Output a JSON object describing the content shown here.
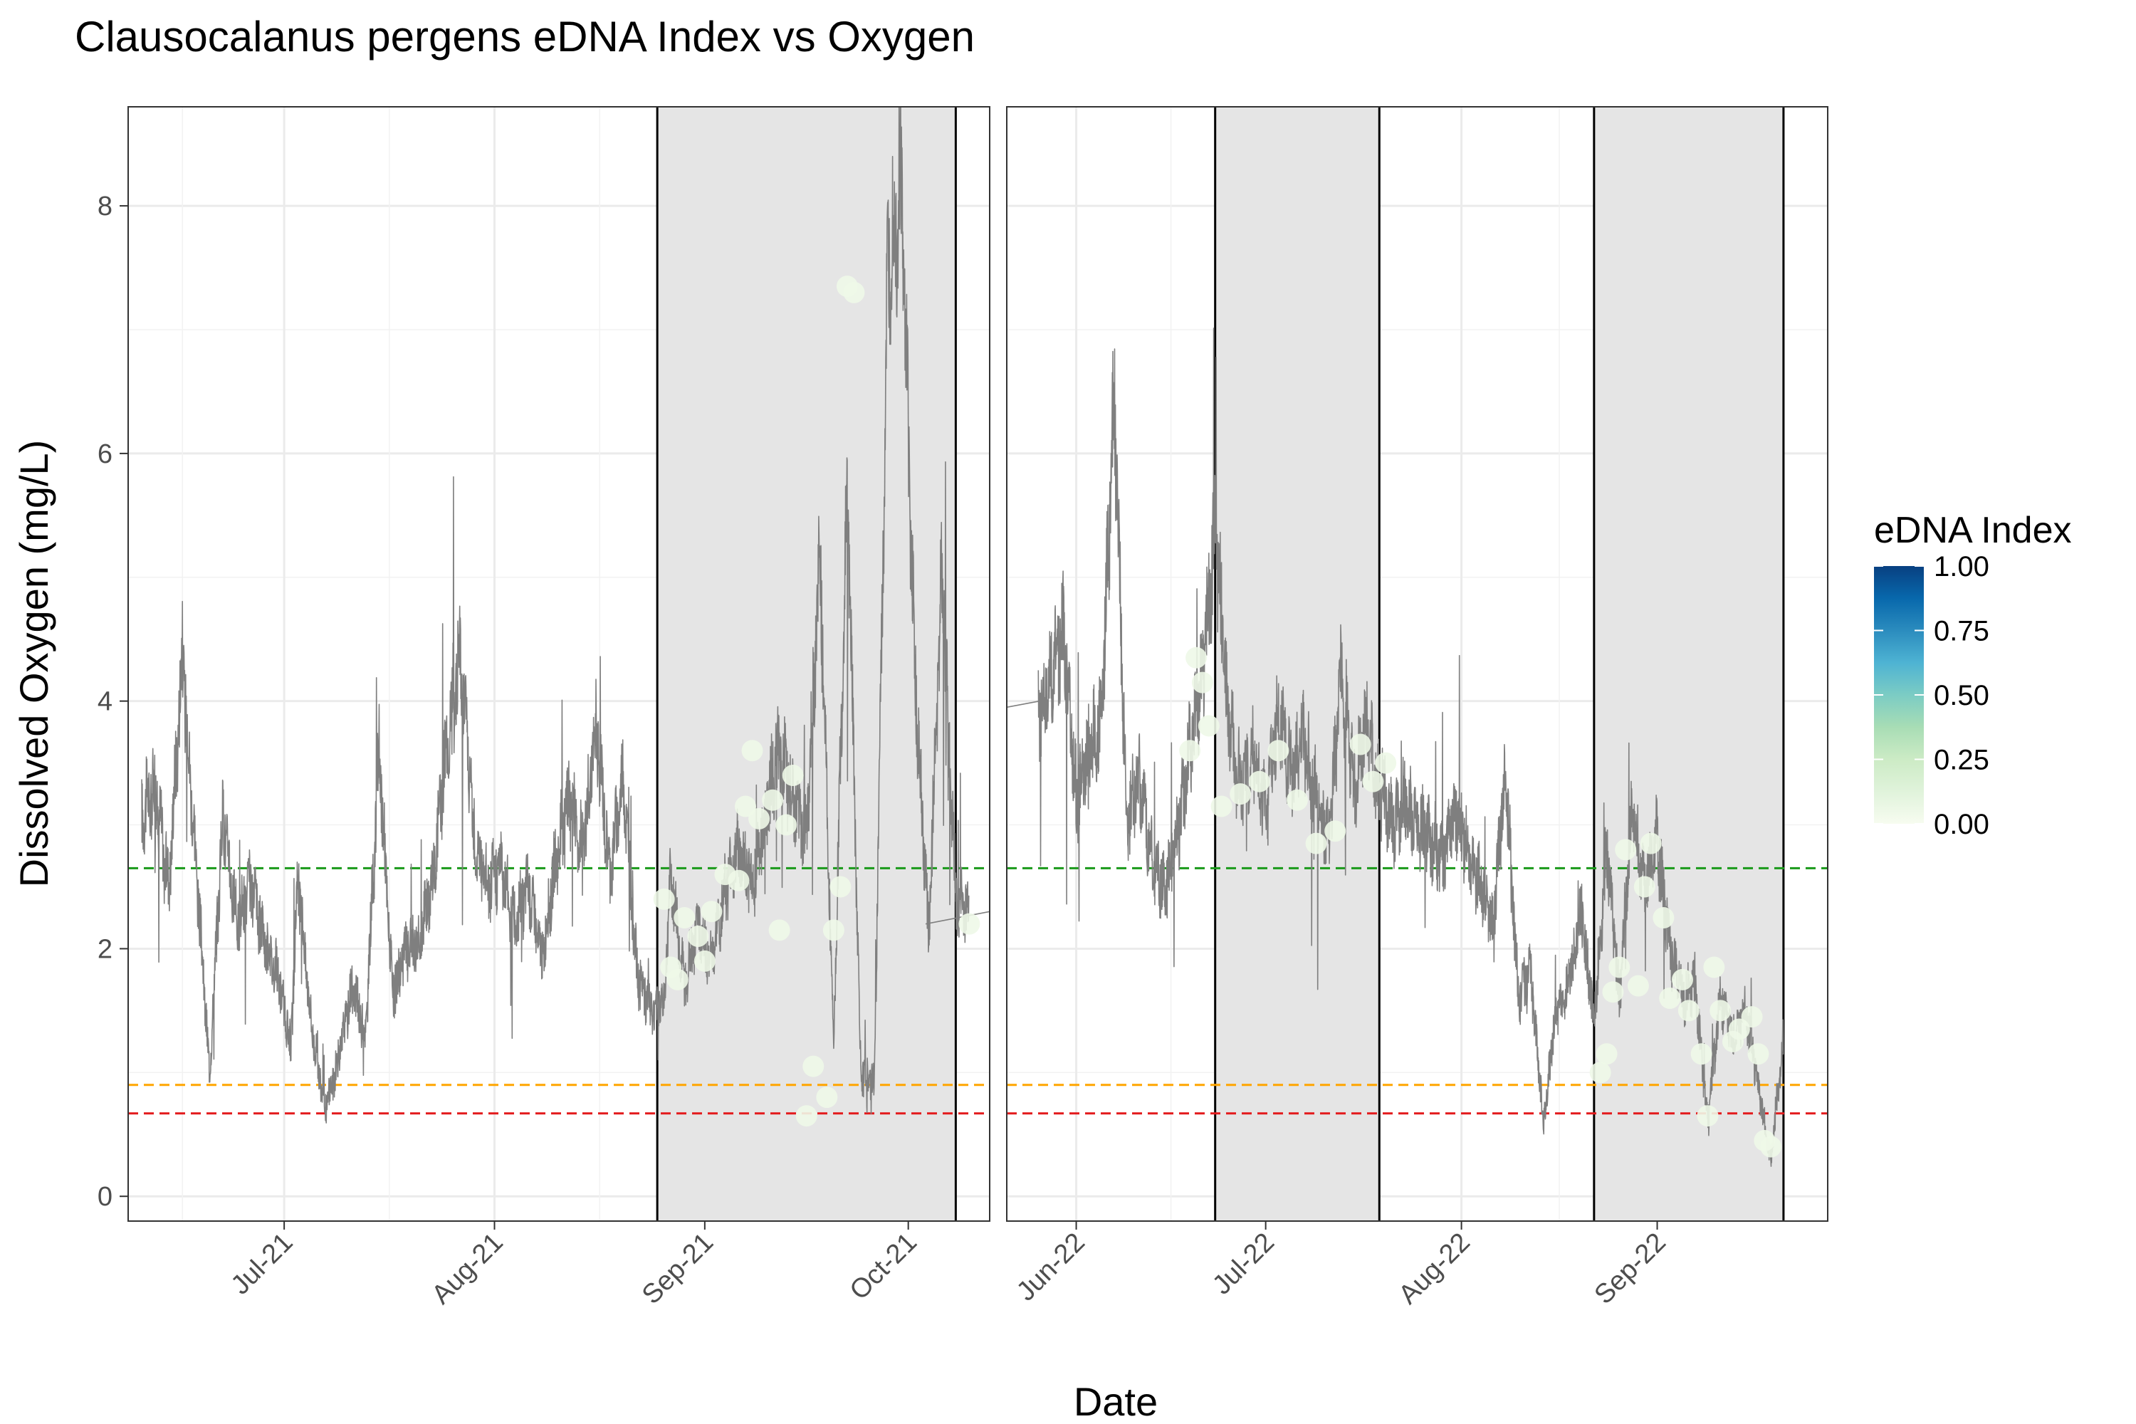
{
  "title": "Clausocalanus pergens eDNA Index vs Oxygen",
  "chart_data": {
    "type": "scatter",
    "title": "Clausocalanus pergens eDNA Index vs Oxygen",
    "xlabel": "Date",
    "ylabel": "Dissolved Oxygen (mg/L)",
    "ylim": [
      -0.2,
      8.8
    ],
    "y_ticks": [
      0,
      2,
      4,
      6,
      8
    ],
    "y_tick_labels": [
      "0",
      "2",
      "4",
      "6",
      "8"
    ],
    "grid": true,
    "legend": {
      "title": "eDNA Index",
      "position": "right",
      "ticks": [
        1.0,
        0.75,
        0.5,
        0.25,
        0.0
      ],
      "labels": [
        "1.00",
        "0.75",
        "0.50",
        "0.25",
        "0.00"
      ],
      "colors": [
        "#084081",
        "#0868ac",
        "#2b8cbe",
        "#4eb3d3",
        "#7bccc4",
        "#a8ddb5",
        "#ccebc5",
        "#e0f3db",
        "#f7fcf0"
      ]
    },
    "reference_lines": [
      {
        "y": 2.65,
        "color": "#1a9a1a"
      },
      {
        "y": 0.9,
        "color": "#ffa500"
      },
      {
        "y": 0.67,
        "color": "#e31a1c"
      }
    ],
    "panels": [
      {
        "xlim": [
          "2021-06-08",
          "2021-10-13"
        ],
        "x_ticks": [
          "2021-07-01",
          "2021-08-01",
          "2021-09-01",
          "2021-10-01"
        ],
        "x_tick_labels": [
          "Jul-21",
          "Aug-21",
          "Sep-21",
          "Oct-21"
        ],
        "shaded_periods": [
          [
            "2021-08-25",
            "2021-10-08"
          ]
        ],
        "oxygen_series": {
          "x_start": "2021-06-10",
          "x_end": "2021-10-10",
          "points": [
            [
              "2021-06-10",
              3.1
            ],
            [
              "2021-06-12",
              3.3
            ],
            [
              "2021-06-14",
              2.5
            ],
            [
              "2021-06-16",
              4.4
            ],
            [
              "2021-06-18",
              2.7
            ],
            [
              "2021-06-20",
              1.0
            ],
            [
              "2021-06-22",
              3.1
            ],
            [
              "2021-06-24",
              2.2
            ],
            [
              "2021-06-26",
              2.5
            ],
            [
              "2021-06-28",
              2.1
            ],
            [
              "2021-06-30",
              1.8
            ],
            [
              "2021-07-02",
              1.2
            ],
            [
              "2021-07-03",
              2.6
            ],
            [
              "2021-07-05",
              1.4
            ],
            [
              "2021-07-07",
              0.7
            ],
            [
              "2021-07-09",
              1.1
            ],
            [
              "2021-07-11",
              1.7
            ],
            [
              "2021-07-13",
              1.3
            ],
            [
              "2021-07-15",
              3.6
            ],
            [
              "2021-07-17",
              1.6
            ],
            [
              "2021-07-19",
              2.0
            ],
            [
              "2021-07-21",
              2.1
            ],
            [
              "2021-07-23",
              2.6
            ],
            [
              "2021-07-25",
              3.7
            ],
            [
              "2021-07-27",
              4.4
            ],
            [
              "2021-07-29",
              2.9
            ],
            [
              "2021-07-31",
              2.5
            ],
            [
              "2021-08-02",
              2.7
            ],
            [
              "2021-08-04",
              2.2
            ],
            [
              "2021-08-06",
              2.5
            ],
            [
              "2021-08-08",
              1.9
            ],
            [
              "2021-08-10",
              2.7
            ],
            [
              "2021-08-12",
              3.2
            ],
            [
              "2021-08-14",
              2.8
            ],
            [
              "2021-08-16",
              3.8
            ],
            [
              "2021-08-18",
              2.6
            ],
            [
              "2021-08-20",
              3.4
            ],
            [
              "2021-08-22",
              1.8
            ],
            [
              "2021-08-24",
              1.5
            ],
            [
              "2021-08-26",
              1.6
            ],
            [
              "2021-08-27",
              2.6
            ],
            [
              "2021-08-29",
              1.7
            ],
            [
              "2021-08-31",
              2.2
            ],
            [
              "2021-09-02",
              1.9
            ],
            [
              "2021-09-04",
              2.5
            ],
            [
              "2021-09-06",
              2.8
            ],
            [
              "2021-09-08",
              2.5
            ],
            [
              "2021-09-10",
              3.1
            ],
            [
              "2021-09-12",
              3.6
            ],
            [
              "2021-09-14",
              3.2
            ],
            [
              "2021-09-16",
              2.9
            ],
            [
              "2021-09-18",
              5.2
            ],
            [
              "2021-09-20",
              1.2
            ],
            [
              "2021-09-22",
              5.8
            ],
            [
              "2021-09-24",
              1.0
            ],
            [
              "2021-09-26",
              0.9
            ],
            [
              "2021-09-28",
              7.6
            ],
            [
              "2021-09-30",
              8.2
            ],
            [
              "2021-10-02",
              4.2
            ],
            [
              "2021-10-04",
              2.1
            ],
            [
              "2021-10-06",
              5.1
            ],
            [
              "2021-10-08",
              2.4
            ],
            [
              "2021-10-10",
              2.3
            ]
          ]
        },
        "edna_points": [
          {
            "x": "2021-08-26",
            "y": 2.4,
            "v": 0.05
          },
          {
            "x": "2021-08-27",
            "y": 1.85,
            "v": 0.05
          },
          {
            "x": "2021-08-28",
            "y": 1.75,
            "v": 0.05
          },
          {
            "x": "2021-08-29",
            "y": 2.25,
            "v": 0.05
          },
          {
            "x": "2021-08-31",
            "y": 2.1,
            "v": 0.05
          },
          {
            "x": "2021-09-01",
            "y": 1.9,
            "v": 0.05
          },
          {
            "x": "2021-09-02",
            "y": 2.3,
            "v": 0.05
          },
          {
            "x": "2021-09-04",
            "y": 2.6,
            "v": 0.05
          },
          {
            "x": "2021-09-06",
            "y": 2.55,
            "v": 0.05
          },
          {
            "x": "2021-09-07",
            "y": 3.15,
            "v": 0.05
          },
          {
            "x": "2021-09-08",
            "y": 3.6,
            "v": 0.05
          },
          {
            "x": "2021-09-09",
            "y": 3.05,
            "v": 0.05
          },
          {
            "x": "2021-09-11",
            "y": 3.2,
            "v": 0.05
          },
          {
            "x": "2021-09-12",
            "y": 2.15,
            "v": 0.05
          },
          {
            "x": "2021-09-13",
            "y": 3.0,
            "v": 0.05
          },
          {
            "x": "2021-09-14",
            "y": 3.4,
            "v": 0.05
          },
          {
            "x": "2021-09-16",
            "y": 0.65,
            "v": 0.05
          },
          {
            "x": "2021-09-17",
            "y": 1.05,
            "v": 0.05
          },
          {
            "x": "2021-09-19",
            "y": 0.8,
            "v": 0.05
          },
          {
            "x": "2021-09-20",
            "y": 2.15,
            "v": 0.05
          },
          {
            "x": "2021-09-21",
            "y": 2.5,
            "v": 0.05
          },
          {
            "x": "2021-09-22",
            "y": 7.35,
            "v": 0.05
          },
          {
            "x": "2021-09-23",
            "y": 7.3,
            "v": 0.05
          },
          {
            "x": "2021-10-10",
            "y": 2.2,
            "v": 0.05
          }
        ]
      },
      {
        "xlim": [
          "2022-05-21",
          "2022-09-28"
        ],
        "x_ticks": [
          "2022-06-01",
          "2022-07-01",
          "2022-08-01",
          "2022-09-01"
        ],
        "x_tick_labels": [
          "Jun-22",
          "Jul-22",
          "Aug-22",
          "Sep-22"
        ],
        "shaded_periods": [
          [
            "2022-06-23",
            "2022-07-19"
          ],
          [
            "2022-08-22",
            "2022-09-21"
          ]
        ],
        "oxygen_series": {
          "x_start": "2022-05-26",
          "x_end": "2022-09-21",
          "points": [
            [
              "2022-05-26",
              3.9
            ],
            [
              "2022-05-28",
              4.2
            ],
            [
              "2022-05-30",
              4.6
            ],
            [
              "2022-06-01",
              3.2
            ],
            [
              "2022-06-03",
              3.6
            ],
            [
              "2022-06-05",
              3.8
            ],
            [
              "2022-06-07",
              6.5
            ],
            [
              "2022-06-09",
              3.0
            ],
            [
              "2022-06-11",
              3.4
            ],
            [
              "2022-06-13",
              2.7
            ],
            [
              "2022-06-15",
              2.5
            ],
            [
              "2022-06-17",
              2.9
            ],
            [
              "2022-06-19",
              3.6
            ],
            [
              "2022-06-21",
              4.2
            ],
            [
              "2022-06-23",
              5.4
            ],
            [
              "2022-06-25",
              3.9
            ],
            [
              "2022-06-27",
              3.3
            ],
            [
              "2022-06-29",
              3.6
            ],
            [
              "2022-07-01",
              3.1
            ],
            [
              "2022-07-03",
              3.9
            ],
            [
              "2022-07-05",
              3.4
            ],
            [
              "2022-07-07",
              3.7
            ],
            [
              "2022-07-09",
              3.2
            ],
            [
              "2022-07-11",
              2.9
            ],
            [
              "2022-07-13",
              4.2
            ],
            [
              "2022-07-15",
              3.3
            ],
            [
              "2022-07-17",
              3.8
            ],
            [
              "2022-07-19",
              3.3
            ],
            [
              "2022-07-21",
              3.0
            ],
            [
              "2022-07-23",
              3.2
            ],
            [
              "2022-07-25",
              3.0
            ],
            [
              "2022-07-27",
              2.9
            ],
            [
              "2022-07-29",
              2.7
            ],
            [
              "2022-07-31",
              3.1
            ],
            [
              "2022-08-02",
              2.8
            ],
            [
              "2022-08-04",
              2.5
            ],
            [
              "2022-08-06",
              2.2
            ],
            [
              "2022-08-08",
              3.5
            ],
            [
              "2022-08-10",
              1.6
            ],
            [
              "2022-08-12",
              1.8
            ],
            [
              "2022-08-14",
              0.6
            ],
            [
              "2022-08-16",
              1.5
            ],
            [
              "2022-08-18",
              1.7
            ],
            [
              "2022-08-20",
              2.3
            ],
            [
              "2022-08-22",
              1.4
            ],
            [
              "2022-08-24",
              2.8
            ],
            [
              "2022-08-26",
              1.6
            ],
            [
              "2022-08-28",
              3.1
            ],
            [
              "2022-08-30",
              2.5
            ],
            [
              "2022-09-01",
              2.9
            ],
            [
              "2022-09-03",
              2.0
            ],
            [
              "2022-09-05",
              1.6
            ],
            [
              "2022-09-07",
              1.7
            ],
            [
              "2022-09-09",
              0.6
            ],
            [
              "2022-09-11",
              1.6
            ],
            [
              "2022-09-13",
              1.3
            ],
            [
              "2022-09-15",
              1.5
            ],
            [
              "2022-09-17",
              0.9
            ],
            [
              "2022-09-19",
              0.3
            ],
            [
              "2022-09-21",
              1.3
            ]
          ]
        },
        "edna_points": [
          {
            "x": "2022-06-19",
            "y": 3.6,
            "v": 0.05
          },
          {
            "x": "2022-06-20",
            "y": 4.35,
            "v": 0.05
          },
          {
            "x": "2022-06-21",
            "y": 4.15,
            "v": 0.05
          },
          {
            "x": "2022-06-22",
            "y": 3.8,
            "v": 0.05
          },
          {
            "x": "2022-06-24",
            "y": 3.15,
            "v": 0.05
          },
          {
            "x": "2022-06-27",
            "y": 3.25,
            "v": 0.05
          },
          {
            "x": "2022-06-30",
            "y": 3.35,
            "v": 0.05
          },
          {
            "x": "2022-07-03",
            "y": 3.6,
            "v": 0.05
          },
          {
            "x": "2022-07-06",
            "y": 3.2,
            "v": 0.05
          },
          {
            "x": "2022-07-09",
            "y": 2.85,
            "v": 0.05
          },
          {
            "x": "2022-07-12",
            "y": 2.95,
            "v": 0.05
          },
          {
            "x": "2022-07-16",
            "y": 3.65,
            "v": 0.05
          },
          {
            "x": "2022-07-18",
            "y": 3.35,
            "v": 0.05
          },
          {
            "x": "2022-07-20",
            "y": 3.5,
            "v": 0.05
          },
          {
            "x": "2022-08-23",
            "y": 1.0,
            "v": 0.05
          },
          {
            "x": "2022-08-24",
            "y": 1.15,
            "v": 0.05
          },
          {
            "x": "2022-08-25",
            "y": 1.65,
            "v": 0.05
          },
          {
            "x": "2022-08-26",
            "y": 1.85,
            "v": 0.05
          },
          {
            "x": "2022-08-27",
            "y": 2.8,
            "v": 0.05
          },
          {
            "x": "2022-08-29",
            "y": 1.7,
            "v": 0.05
          },
          {
            "x": "2022-08-30",
            "y": 2.5,
            "v": 0.05
          },
          {
            "x": "2022-08-31",
            "y": 2.85,
            "v": 0.05
          },
          {
            "x": "2022-09-02",
            "y": 2.25,
            "v": 0.05
          },
          {
            "x": "2022-09-03",
            "y": 1.6,
            "v": 0.05
          },
          {
            "x": "2022-09-05",
            "y": 1.75,
            "v": 0.05
          },
          {
            "x": "2022-09-06",
            "y": 1.5,
            "v": 0.05
          },
          {
            "x": "2022-09-08",
            "y": 1.15,
            "v": 0.05
          },
          {
            "x": "2022-09-09",
            "y": 0.65,
            "v": 0.05
          },
          {
            "x": "2022-09-10",
            "y": 1.85,
            "v": 0.05
          },
          {
            "x": "2022-09-11",
            "y": 1.5,
            "v": 0.05
          },
          {
            "x": "2022-09-13",
            "y": 1.25,
            "v": 0.05
          },
          {
            "x": "2022-09-14",
            "y": 1.35,
            "v": 0.05
          },
          {
            "x": "2022-09-16",
            "y": 1.45,
            "v": 0.05
          },
          {
            "x": "2022-09-17",
            "y": 1.15,
            "v": 0.05
          },
          {
            "x": "2022-09-18",
            "y": 0.45,
            "v": 0.05
          },
          {
            "x": "2022-09-19",
            "y": 0.4,
            "v": 0.05
          }
        ]
      }
    ]
  }
}
